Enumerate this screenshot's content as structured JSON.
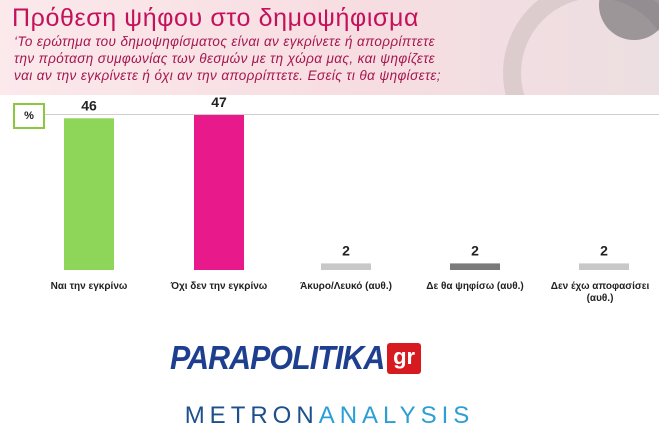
{
  "header": {
    "title": "Πρόθεση ψήφου στο δημοψήφισμα",
    "question_lines": [
      "‘Το ερώτημα του δημοψηφίσματος είναι αν εγκρίνετε ή απορρίπτετε",
      "την πρόταση συμφωνίας των θεσμών με τη χώρα μας, και ψηφίζετε",
      "ναι αν την εγκρίνετε ή όχι αν την απορρίπτετε. Εσείς τι θα ψηφίσετε;"
    ]
  },
  "chart_data": {
    "type": "bar",
    "unit_label": "%",
    "categories": [
      "Ναι την εγκρίνω",
      "Όχι δεν την εγκρίνω",
      "Άκυρο/Λευκό (αυθ.)",
      "Δε θα ψηφίσω (αυθ.)",
      "Δεν έχω αποφασίσει (αυθ.)"
    ],
    "values": [
      46,
      47,
      2,
      2,
      2
    ],
    "colors": [
      "#8dd65a",
      "#e8198b",
      "#c8c8c8",
      "#7a7a7a",
      "#c8c8c8"
    ],
    "ylim": [
      0,
      47
    ],
    "grid": false,
    "legend": "none"
  },
  "logos": {
    "parapolitika_text": "PARAPOLITIKA",
    "parapolitika_suffix": "gr",
    "metron_part1": "METRON",
    "metron_part2": "ANALYSIS"
  },
  "colors": {
    "title": "#c4125a",
    "header_bg": "#f7dde2",
    "pct_box_border": "#8dc63f"
  }
}
